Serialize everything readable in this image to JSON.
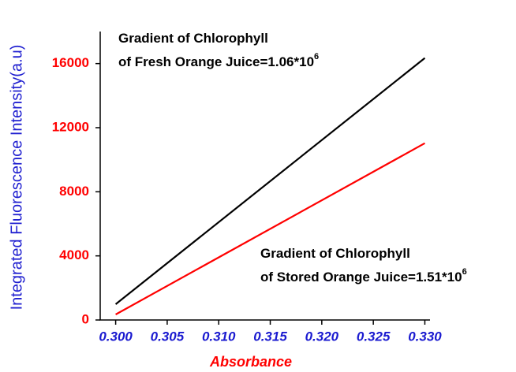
{
  "chart_data": {
    "type": "line",
    "xlabel": "Absorbance",
    "ylabel": "Integrated Fluorescence Intensity(a.u)",
    "x": [
      0.3,
      0.33
    ],
    "series": [
      {
        "name": "Fresh Orange Juice",
        "color": "#000000",
        "values": [
          985,
          16345
        ]
      },
      {
        "name": "Stored Orange Juice",
        "color": "#ff0000",
        "values": [
          345,
          11030
        ]
      }
    ],
    "xlim": [
      0.2985,
      0.3305
    ],
    "ylim": [
      0,
      18000
    ],
    "xticks": [
      {
        "value": 0.3,
        "label": "0.300"
      },
      {
        "value": 0.305,
        "label": "0.305"
      },
      {
        "value": 0.31,
        "label": "0.310"
      },
      {
        "value": 0.315,
        "label": "0.315"
      },
      {
        "value": 0.32,
        "label": "0.320"
      },
      {
        "value": 0.325,
        "label": "0.325"
      },
      {
        "value": 0.33,
        "label": "0.330"
      }
    ],
    "yticks": [
      0,
      4000,
      8000,
      12000,
      16000
    ],
    "annotations": [
      {
        "lines": [
          "Gradient of Chlorophyll",
          "of Fresh Orange Juice=1.06*10"
        ],
        "sup": "6"
      },
      {
        "lines": [
          "Gradient of Chlorophyll",
          "of Stored Orange Juice=1.51*10"
        ],
        "sup": "6"
      }
    ]
  }
}
